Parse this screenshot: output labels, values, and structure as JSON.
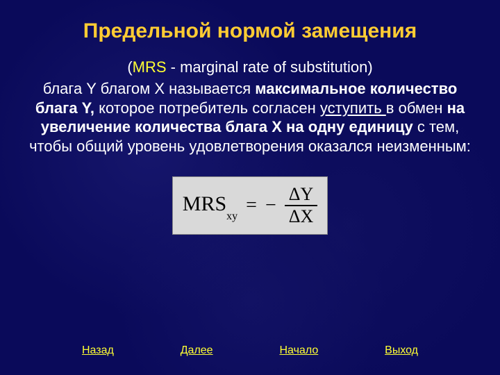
{
  "title": "Предельной нормой замещения",
  "subtitle": {
    "abbr": "MRS",
    "expansion": " - marginal rate of substitution)"
  },
  "body": {
    "pre1": "блага Y благом X называется ",
    "bold1": "максимальное количество блага Y, ",
    "mid1": "которое потребитель согласен ",
    "underline1": "уступить ",
    "mid2": " в обмен ",
    "bold2": "на увеличение количества блага X на одну единицу ",
    "tail": "с тем, чтобы общий уровень удовлетворения оказался неизменным:"
  },
  "formula": {
    "lhs": "MRS",
    "subscript": "xy",
    "eq": "=",
    "sign": "−",
    "numerator": "ΔY",
    "denominator": "ΔX",
    "bg_color": "#d9d9d9",
    "text_color": "#000000",
    "font_family": "Times New Roman",
    "font_size_pt": 22
  },
  "nav": {
    "back": "Назад",
    "next": "Далее",
    "home": "Начало",
    "exit": "Выход"
  },
  "style": {
    "background_color": "#0a0a5a",
    "title_color": "#ffcc33",
    "text_color": "#ffffff",
    "accent_color": "#ffff33",
    "title_fontsize_pt": 22,
    "body_fontsize_pt": 16
  }
}
